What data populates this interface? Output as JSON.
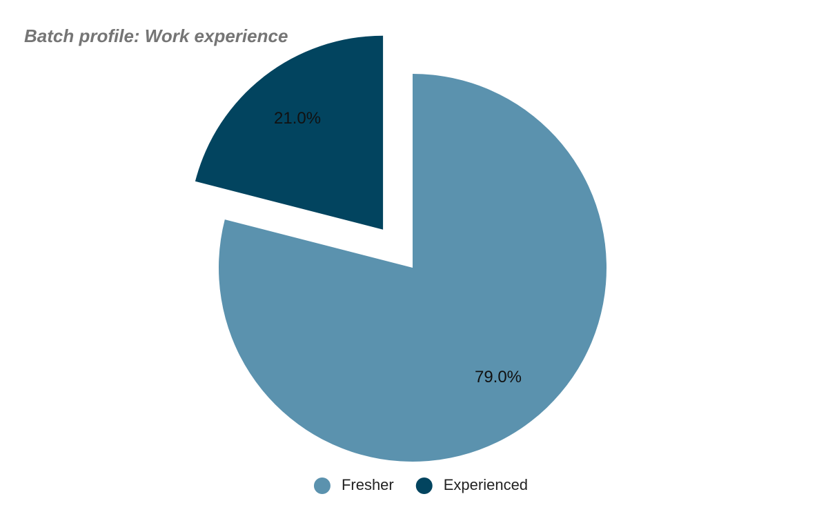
{
  "chart_data": {
    "type": "pie",
    "title": "Batch profile: Work experience",
    "categories": [
      "Fresher",
      "Experienced"
    ],
    "values": [
      79.0,
      21.0
    ],
    "value_labels": [
      "79.0%",
      "21.0%"
    ],
    "colors": [
      "#5b92ae",
      "#02445f"
    ],
    "legend": "bottom"
  }
}
